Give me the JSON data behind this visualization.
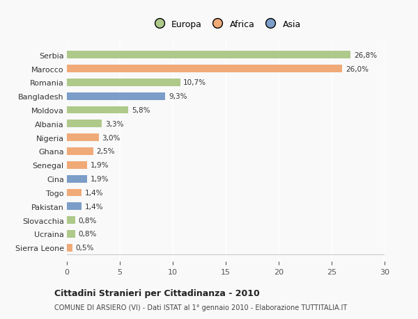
{
  "categories": [
    "Serbia",
    "Marocco",
    "Romania",
    "Bangladesh",
    "Moldova",
    "Albania",
    "Nigeria",
    "Ghana",
    "Senegal",
    "Cina",
    "Togo",
    "Pakistan",
    "Slovacchia",
    "Ucraina",
    "Sierra Leone"
  ],
  "values": [
    26.8,
    26.0,
    10.7,
    9.3,
    5.8,
    3.3,
    3.0,
    2.5,
    1.9,
    1.9,
    1.4,
    1.4,
    0.8,
    0.8,
    0.5
  ],
  "labels": [
    "26,8%",
    "26,0%",
    "10,7%",
    "9,3%",
    "5,8%",
    "3,3%",
    "3,0%",
    "2,5%",
    "1,9%",
    "1,9%",
    "1,4%",
    "1,4%",
    "0,8%",
    "0,8%",
    "0,5%"
  ],
  "continents": [
    "Europa",
    "Africa",
    "Europa",
    "Asia",
    "Europa",
    "Europa",
    "Africa",
    "Africa",
    "Africa",
    "Asia",
    "Africa",
    "Asia",
    "Europa",
    "Europa",
    "Africa"
  ],
  "colors": {
    "Europa": "#aec98a",
    "Africa": "#f0aa78",
    "Asia": "#7b9dc8"
  },
  "legend_labels": [
    "Europa",
    "Africa",
    "Asia"
  ],
  "title": "Cittadini Stranieri per Cittadinanza - 2010",
  "subtitle": "COMUNE DI ARSIERO (VI) - Dati ISTAT al 1° gennaio 2010 - Elaborazione TUTTITALIA.IT",
  "xlim": [
    0,
    30
  ],
  "xticks": [
    0,
    5,
    10,
    15,
    20,
    25,
    30
  ],
  "background_color": "#f9f9f9",
  "grid_color": "#ffffff",
  "bar_height": 0.55
}
